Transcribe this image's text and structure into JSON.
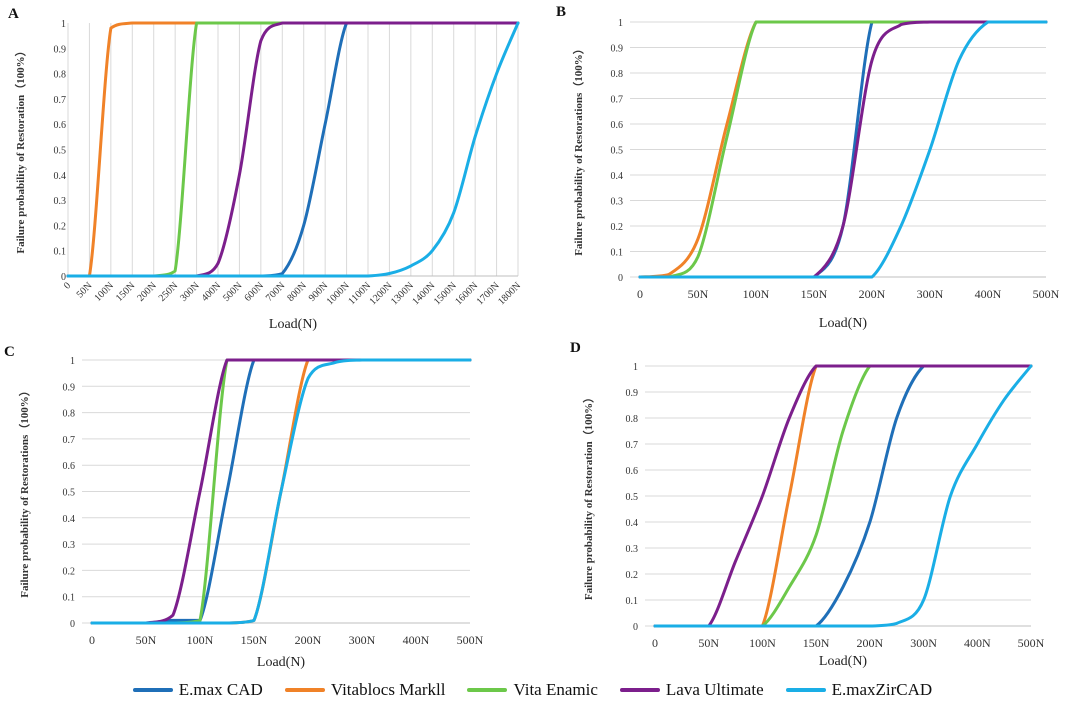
{
  "chart_data": [
    {
      "id": "A",
      "type": "line",
      "panel_label": "A",
      "title": "",
      "xlabel": "Load(N)",
      "ylabel": "Failure probability of  Restoration（100%）",
      "categories": [
        "0",
        "50N",
        "100N",
        "150N",
        "200N",
        "250N",
        "300N",
        "400N",
        "500N",
        "600N",
        "700N",
        "800N",
        "900N",
        "1000N",
        "1100N",
        "1200N",
        "1300N",
        "1400N",
        "1500N",
        "1600N",
        "1700N",
        "1800N"
      ],
      "ylim": [
        0,
        1
      ],
      "yticks": [
        "0",
        "0.1",
        "0.2",
        "0.3",
        "0.4",
        "0.5",
        "0.6",
        "0.7",
        "0.8",
        "0.9",
        "1"
      ],
      "grid": "vertical",
      "series": [
        {
          "name": "E.max CAD",
          "values": [
            0,
            0,
            0,
            0,
            0,
            0,
            0,
            0,
            0,
            0,
            0.01,
            0.2,
            0.6,
            1,
            1,
            1,
            1,
            1,
            1,
            1,
            1,
            1
          ]
        },
        {
          "name": "Vitablocs Markll",
          "values": [
            0,
            0,
            0.98,
            1,
            1,
            1,
            1,
            1,
            1,
            1,
            1,
            1,
            1,
            1,
            1,
            1,
            1,
            1,
            1,
            1,
            1,
            1
          ]
        },
        {
          "name": "Vita Enamic",
          "values": [
            0,
            0,
            0,
            0,
            0,
            0.02,
            1,
            1,
            1,
            1,
            1,
            1,
            1,
            1,
            1,
            1,
            1,
            1,
            1,
            1,
            1,
            1
          ]
        },
        {
          "name": "Lava Ultimate",
          "values": [
            0,
            0,
            0,
            0,
            0,
            0,
            0,
            0.05,
            0.4,
            0.93,
            1,
            1,
            1,
            1,
            1,
            1,
            1,
            1,
            1,
            1,
            1,
            1
          ]
        },
        {
          "name": "E.maxZirCAD",
          "values": [
            0,
            0,
            0,
            0,
            0,
            0,
            0,
            0,
            0,
            0,
            0,
            0,
            0,
            0,
            0,
            0.01,
            0.04,
            0.1,
            0.25,
            0.55,
            0.8,
            1
          ]
        }
      ]
    },
    {
      "id": "B",
      "type": "line",
      "panel_label": "B",
      "title": "",
      "xlabel": "Load(N)",
      "ylabel": "Failure probability of  Restorations（100%）",
      "categories": [
        "0",
        "50N",
        "100N",
        "150N",
        "200N",
        "300N",
        "400N",
        "500N"
      ],
      "ylim": [
        0,
        1
      ],
      "yticks": [
        "0",
        "0.1",
        "0.2",
        "0.3",
        "0.4",
        "0.5",
        "0.6",
        "0.7",
        "0.8",
        "0.9",
        "1"
      ],
      "grid": "horizontal",
      "series": [
        {
          "name": "E.max CAD",
          "x": [
            0,
            0.5,
            1,
            1.5,
            2,
            2.5,
            3,
            3.5,
            4,
            4.5,
            5,
            5.5,
            6,
            6.5,
            7
          ],
          "values": [
            0,
            0,
            0,
            0,
            0,
            0,
            0,
            0.2,
            1,
            1,
            1,
            1,
            1,
            1,
            1
          ]
        },
        {
          "name": "Vitablocs Markll",
          "x": [
            0,
            0.5,
            1,
            1.5,
            2,
            2.5,
            3,
            3.5,
            4,
            4.5,
            5,
            5.5,
            6,
            6.5,
            7
          ],
          "values": [
            0,
            0.01,
            0.15,
            0.6,
            1,
            1,
            1,
            1,
            1,
            1,
            1,
            1,
            1,
            1,
            1
          ]
        },
        {
          "name": "Vita Enamic",
          "x": [
            0,
            0.5,
            1,
            1.5,
            2,
            2.5,
            3,
            3.5,
            4,
            4.5,
            5,
            5.5,
            6,
            6.5,
            7
          ],
          "values": [
            0,
            0,
            0.08,
            0.55,
            1,
            1,
            1,
            1,
            1,
            1,
            1,
            1,
            1,
            1,
            1
          ]
        },
        {
          "name": "Lava Ultimate",
          "x": [
            0,
            0.5,
            1,
            1.5,
            2,
            2.5,
            3,
            3.5,
            4,
            4.5,
            5,
            5.5,
            6,
            6.5,
            7
          ],
          "values": [
            0,
            0,
            0,
            0,
            0,
            0,
            0,
            0.2,
            0.85,
            0.99,
            1,
            1,
            1,
            1,
            1
          ]
        },
        {
          "name": "E.maxZirCAD",
          "x": [
            0,
            0.5,
            1,
            1.5,
            2,
            2.5,
            3,
            3.5,
            4,
            4.5,
            5,
            5.5,
            6,
            6.5,
            7
          ],
          "values": [
            0,
            0,
            0,
            0,
            0,
            0,
            0,
            0,
            0,
            0.2,
            0.5,
            0.85,
            1,
            1,
            1
          ]
        }
      ]
    },
    {
      "id": "C",
      "type": "line",
      "panel_label": "C",
      "title": "",
      "xlabel": "Load(N)",
      "ylabel": "Failure probability of Restorations（100%）",
      "categories": [
        "0",
        "50N",
        "100N",
        "150N",
        "200N",
        "300N",
        "400N",
        "500N"
      ],
      "ylim": [
        0,
        1
      ],
      "yticks": [
        "0",
        "0.1",
        "0.2",
        "0.3",
        "0.4",
        "0.5",
        "0.6",
        "0.7",
        "0.8",
        "0.9",
        "1"
      ],
      "grid": "horizontal",
      "series": [
        {
          "name": "E.max CAD",
          "x": [
            0,
            0.5,
            1,
            1.5,
            2,
            2.5,
            3,
            3.5,
            4,
            4.5,
            5,
            5.5,
            6,
            6.5,
            7
          ],
          "values": [
            0,
            0,
            0,
            0.01,
            0.01,
            0.5,
            1,
            1,
            1,
            1,
            1,
            1,
            1,
            1,
            1
          ]
        },
        {
          "name": "Vitablocs Markll",
          "x": [
            0,
            0.5,
            1,
            1.5,
            2,
            2.5,
            3,
            3.5,
            4,
            4.5,
            5,
            5.5,
            6,
            6.5,
            7
          ],
          "values": [
            0,
            0,
            0,
            0,
            0,
            0,
            0.01,
            0.5,
            1,
            1,
            1,
            1,
            1,
            1,
            1
          ]
        },
        {
          "name": "Vita Enamic",
          "x": [
            0,
            0.5,
            1,
            1.5,
            2,
            2.5,
            3,
            3.5,
            4,
            4.5,
            5,
            5.5,
            6,
            6.5,
            7
          ],
          "values": [
            0,
            0,
            0,
            0,
            0.01,
            1,
            1,
            1,
            1,
            1,
            1,
            1,
            1,
            1,
            1
          ]
        },
        {
          "name": "Lava Ultimate",
          "x": [
            0,
            0.5,
            1,
            1.5,
            2,
            2.5,
            3,
            3.5,
            4,
            4.5,
            5,
            5.5,
            6,
            6.5,
            7
          ],
          "values": [
            0,
            0,
            0,
            0.03,
            0.5,
            1,
            1,
            1,
            1,
            1,
            1,
            1,
            1,
            1,
            1
          ]
        },
        {
          "name": "E.maxZirCAD",
          "x": [
            0,
            0.5,
            1,
            1.5,
            2,
            2.5,
            3,
            3.5,
            4,
            4.5,
            5,
            5.5,
            6,
            6.5,
            7
          ],
          "values": [
            0,
            0,
            0,
            0,
            0,
            0,
            0.01,
            0.5,
            0.93,
            0.99,
            1,
            1,
            1,
            1,
            1
          ]
        }
      ]
    },
    {
      "id": "D",
      "type": "line",
      "panel_label": "D",
      "title": "",
      "xlabel": "Load(N)",
      "ylabel": "Failure probability of  Restoration（100%）",
      "categories": [
        "0",
        "50N",
        "100N",
        "150N",
        "200N",
        "300N",
        "400N",
        "500N"
      ],
      "ylim": [
        0,
        1
      ],
      "yticks": [
        "0",
        "0.1",
        "0.2",
        "0.3",
        "0.4",
        "0.5",
        "0.6",
        "0.7",
        "0.8",
        "0.9",
        "1"
      ],
      "grid": "horizontal",
      "series": [
        {
          "name": "E.max CAD",
          "x": [
            0,
            0.5,
            1,
            1.5,
            2,
            2.5,
            3,
            3.5,
            4,
            4.5,
            5,
            5.5,
            6,
            6.5,
            7
          ],
          "values": [
            0,
            0,
            0,
            0,
            0,
            0,
            0,
            0.15,
            0.4,
            0.8,
            1,
            1,
            1,
            1,
            1
          ]
        },
        {
          "name": "Vitablocs Markll",
          "x": [
            0,
            0.5,
            1,
            1.5,
            2,
            2.5,
            3,
            3.5,
            4,
            4.5,
            5,
            5.5,
            6,
            6.5,
            7
          ],
          "values": [
            0,
            0,
            0,
            0,
            0,
            0.5,
            1,
            1,
            1,
            1,
            1,
            1,
            1,
            1,
            1
          ]
        },
        {
          "name": "Vita Enamic",
          "x": [
            0,
            0.5,
            1,
            1.5,
            2,
            2.5,
            3,
            3.5,
            4,
            4.5,
            5,
            5.5,
            6,
            6.5,
            7
          ],
          "values": [
            0,
            0,
            0,
            0,
            0,
            0.15,
            0.35,
            0.75,
            1,
            1,
            1,
            1,
            1,
            1,
            1
          ]
        },
        {
          "name": "Lava Ultimate",
          "x": [
            0,
            0.5,
            1,
            1.5,
            2,
            2.5,
            3,
            3.5,
            4,
            4.5,
            5,
            5.5,
            6,
            6.5,
            7
          ],
          "values": [
            0,
            0,
            0,
            0.25,
            0.5,
            0.8,
            1,
            1,
            1,
            1,
            1,
            1,
            1,
            1,
            1
          ]
        },
        {
          "name": "E.maxZirCAD",
          "x": [
            0,
            0.5,
            1,
            1.5,
            2,
            2.5,
            3,
            3.5,
            4,
            4.5,
            5,
            5.5,
            6,
            6.5,
            7
          ],
          "values": [
            0,
            0,
            0,
            0,
            0,
            0,
            0,
            0,
            0,
            0.01,
            0.1,
            0.5,
            0.7,
            0.87,
            1
          ]
        }
      ]
    }
  ],
  "legend": [
    {
      "name": "E.max CAD",
      "color": "#1f6fb8"
    },
    {
      "name": "Vitablocs Markll",
      "color": "#f08228"
    },
    {
      "name": "Vita Enamic",
      "color": "#6cc84a"
    },
    {
      "name": "Lava Ultimate",
      "color": "#7c1f8c"
    },
    {
      "name": "E.maxZirCAD",
      "color": "#1aaee6"
    }
  ]
}
